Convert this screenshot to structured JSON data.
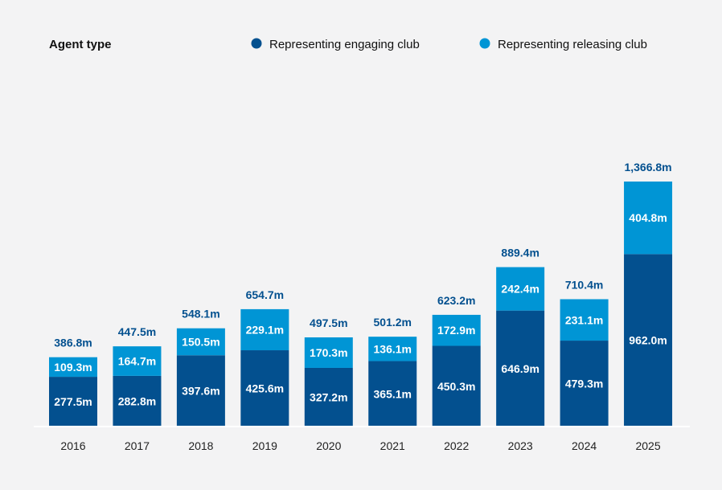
{
  "colors": {
    "engaging": "#03508f",
    "releasing": "#0095d5",
    "total_label": "#03508f",
    "axis": "#ffffff"
  },
  "chart_data": {
    "type": "bar",
    "stacked": true,
    "title": "",
    "xlabel": "",
    "ylabel": "",
    "ylim": [
      0,
      1366.8
    ],
    "grid": false,
    "legend": {
      "title": "Agent type",
      "placement": "top",
      "entries": [
        "Representing engaging club",
        "Representing releasing club"
      ]
    },
    "categories": [
      "2016",
      "2017",
      "2018",
      "2019",
      "2020",
      "2021",
      "2022",
      "2023",
      "2024",
      "2025"
    ],
    "series": [
      {
        "name": "Representing engaging club",
        "values": [
          277.5,
          282.8,
          397.6,
          425.6,
          327.2,
          365.1,
          450.3,
          646.9,
          479.3,
          962.0
        ],
        "labels": [
          "277.5m",
          "282.8m",
          "397.6m",
          "425.6m",
          "327.2m",
          "365.1m",
          "450.3m",
          "646.9m",
          "479.3m",
          "962.0m"
        ]
      },
      {
        "name": "Representing releasing club",
        "values": [
          109.3,
          164.7,
          150.5,
          229.1,
          170.3,
          136.1,
          172.9,
          242.4,
          231.1,
          404.8
        ],
        "labels": [
          "109.3m",
          "164.7m",
          "150.5m",
          "229.1m",
          "170.3m",
          "136.1m",
          "172.9m",
          "242.4m",
          "231.1m",
          "404.8m"
        ]
      }
    ],
    "totals": [
      386.8,
      447.5,
      548.1,
      654.7,
      497.5,
      501.2,
      623.2,
      889.4,
      710.4,
      1366.8
    ],
    "total_labels": [
      "386.8m",
      "447.5m",
      "548.1m",
      "654.7m",
      "497.5m",
      "501.2m",
      "623.2m",
      "889.4m",
      "710.4m",
      "1,366.8m"
    ]
  }
}
